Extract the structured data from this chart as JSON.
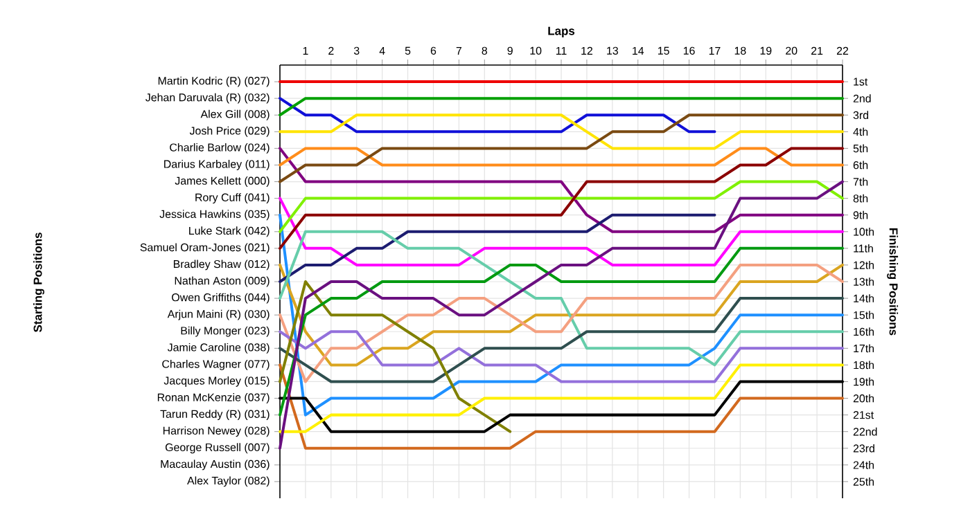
{
  "chart_data": {
    "type": "line",
    "xlabel": "Laps",
    "y2label": "Finishing Positions",
    "x": [
      0,
      1,
      2,
      3,
      4,
      5,
      6,
      7,
      8,
      9,
      10,
      11,
      12,
      13,
      14,
      15,
      16,
      17,
      18,
      19,
      20,
      21,
      22
    ],
    "xlim": [
      0,
      22
    ],
    "xticks": [
      1,
      2,
      3,
      4,
      5,
      6,
      7,
      8,
      9,
      10,
      11,
      12,
      13,
      14,
      15,
      16,
      17,
      18,
      19,
      20,
      21,
      22
    ],
    "y2lim": [
      26,
      0
    ],
    "y2ticks": [
      {
        "value": 1,
        "label": "1st"
      },
      {
        "value": 2,
        "label": "2nd"
      },
      {
        "value": 3,
        "label": "3rd"
      },
      {
        "value": 4,
        "label": "4th"
      },
      {
        "value": 5,
        "label": "5th"
      },
      {
        "value": 6,
        "label": "6th"
      },
      {
        "value": 7,
        "label": "7th"
      },
      {
        "value": 8,
        "label": "8th"
      },
      {
        "value": 9,
        "label": "9th"
      },
      {
        "value": 10,
        "label": "10th"
      },
      {
        "value": 11,
        "label": "11th"
      },
      {
        "value": 12,
        "label": "12th"
      },
      {
        "value": 13,
        "label": "13th"
      },
      {
        "value": 14,
        "label": "14th"
      },
      {
        "value": 15,
        "label": "15th"
      },
      {
        "value": 16,
        "label": "16th"
      },
      {
        "value": 17,
        "label": "17th"
      },
      {
        "value": 18,
        "label": "18th"
      },
      {
        "value": 19,
        "label": "19th"
      },
      {
        "value": 20,
        "label": "20th"
      },
      {
        "value": 21,
        "label": "21st"
      },
      {
        "value": 22,
        "label": "22nd"
      },
      {
        "value": 23,
        "label": "23rd"
      },
      {
        "value": 24,
        "label": "24th"
      },
      {
        "value": 25,
        "label": "25th"
      }
    ],
    "grid": true,
    "annotations": [
      "Starting Positions",
      "Martin Kodric (R) (027)",
      "Jehan Daruvala (R) (032)",
      "Alex Gill (008)",
      "Josh Price (029)",
      "Charlie Barlow (024)",
      "Darius Karbaley (011)",
      "James Kellett (000)",
      "Rory Cuff (041)",
      "Jessica Hawkins (035)",
      "Luke Stark (042)",
      "Samuel Oram-Jones (021)",
      "Bradley Shaw (012)",
      "Nathan Aston (009)",
      "Owen Griffiths (044)",
      "Arjun Maini (R) (030)",
      "Billy Monger (023)",
      "Jamie Caroline (038)",
      "Charles Wagner (077)",
      "Jacques Morley (015)",
      "Ronan McKenzie (037)",
      "Tarun Reddy (R) (031)",
      "Harrison Newey (028)",
      "George Russell (007)",
      "Macaulay Austin (036)",
      "Alex Taylor (082)"
    ],
    "series": [
      {
        "axis": "y2",
        "color": "#ee0000",
        "values": [
          1,
          1,
          1,
          1,
          1,
          1,
          1,
          1,
          1,
          1,
          1,
          1,
          1,
          1,
          1,
          1,
          1,
          1,
          1,
          1,
          1,
          1,
          1
        ]
      },
      {
        "axis": "y2",
        "color": "#1010d8",
        "values": [
          2,
          3,
          3,
          4,
          4,
          4,
          4,
          4,
          4,
          4,
          4,
          4,
          3,
          3,
          3,
          3,
          4,
          4,
          null,
          null,
          null,
          null,
          null
        ]
      },
      {
        "axis": "y2",
        "color": "#00a000",
        "values": [
          3,
          2,
          2,
          2,
          2,
          2,
          2,
          2,
          2,
          2,
          2,
          2,
          2,
          2,
          2,
          2,
          2,
          2,
          2,
          2,
          2,
          2,
          2
        ]
      },
      {
        "axis": "y2",
        "color": "#ffe400",
        "values": [
          4,
          4,
          4,
          3,
          3,
          3,
          3,
          3,
          3,
          3,
          3,
          3,
          4,
          5,
          5,
          5,
          5,
          5,
          4,
          4,
          4,
          4,
          4
        ]
      },
      {
        "axis": "y2",
        "color": "#800080",
        "values": [
          5,
          7,
          7,
          7,
          7,
          7,
          7,
          7,
          7,
          7,
          7,
          7,
          9,
          10,
          10,
          10,
          10,
          10,
          9,
          9,
          9,
          9,
          9
        ]
      },
      {
        "axis": "y2",
        "color": "#ff8c1a",
        "values": [
          6,
          5,
          5,
          5,
          6,
          6,
          6,
          6,
          6,
          6,
          6,
          6,
          6,
          6,
          6,
          6,
          6,
          6,
          5,
          5,
          6,
          6,
          6
        ]
      },
      {
        "axis": "y2",
        "color": "#7a4a12",
        "values": [
          7,
          6,
          6,
          6,
          5,
          5,
          5,
          5,
          5,
          5,
          5,
          5,
          5,
          4,
          4,
          4,
          3,
          3,
          3,
          3,
          3,
          3,
          3
        ]
      },
      {
        "axis": "y2",
        "color": "#ff00ff",
        "values": [
          8,
          11,
          11,
          12,
          12,
          12,
          12,
          12,
          11,
          11,
          11,
          11,
          11,
          12,
          12,
          12,
          12,
          12,
          10,
          10,
          10,
          10,
          10
        ]
      },
      {
        "axis": "y2",
        "color": "#1e90ff",
        "values": [
          9,
          21,
          20,
          20,
          20,
          20,
          20,
          19,
          19,
          19,
          19,
          18,
          18,
          18,
          18,
          18,
          18,
          17,
          15,
          15,
          15,
          15,
          15
        ]
      },
      {
        "axis": "y2",
        "color": "#80f000",
        "values": [
          10,
          8,
          8,
          8,
          8,
          8,
          8,
          8,
          8,
          8,
          8,
          8,
          8,
          8,
          8,
          8,
          8,
          8,
          7,
          7,
          7,
          7,
          8
        ]
      },
      {
        "axis": "y2",
        "color": "#8b0000",
        "values": [
          11,
          9,
          9,
          9,
          9,
          9,
          9,
          9,
          9,
          9,
          9,
          9,
          7,
          7,
          7,
          7,
          7,
          7,
          6,
          6,
          5,
          5,
          5
        ]
      },
      {
        "axis": "y2",
        "color": "#daa520",
        "values": [
          12,
          16,
          18,
          18,
          17,
          17,
          16,
          16,
          16,
          16,
          15,
          15,
          15,
          15,
          15,
          15,
          15,
          15,
          13,
          13,
          13,
          13,
          12
        ]
      },
      {
        "axis": "y2",
        "color": "#1c1c70",
        "values": [
          13,
          12,
          12,
          11,
          11,
          10,
          10,
          10,
          10,
          10,
          10,
          10,
          10,
          9,
          9,
          9,
          9,
          9,
          null,
          null,
          null,
          null,
          null
        ]
      },
      {
        "axis": "y2",
        "color": "#66cdaa",
        "values": [
          14,
          10,
          10,
          10,
          10,
          11,
          11,
          11,
          12,
          13,
          14,
          14,
          17,
          17,
          17,
          17,
          17,
          18,
          16,
          16,
          16,
          16,
          16
        ]
      },
      {
        "axis": "y2",
        "color": "#f4a080",
        "values": [
          15,
          19,
          17,
          17,
          16,
          15,
          15,
          14,
          14,
          15,
          16,
          16,
          14,
          14,
          14,
          14,
          14,
          14,
          12,
          12,
          12,
          12,
          13
        ]
      },
      {
        "axis": "y2",
        "color": "#9370db",
        "values": [
          16,
          17,
          16,
          16,
          18,
          18,
          18,
          17,
          18,
          18,
          18,
          19,
          19,
          19,
          19,
          19,
          19,
          19,
          17,
          17,
          17,
          17,
          17
        ]
      },
      {
        "axis": "y2",
        "color": "#2f4f4f",
        "values": [
          17,
          18,
          19,
          19,
          19,
          19,
          19,
          18,
          17,
          17,
          17,
          17,
          16,
          16,
          16,
          16,
          16,
          16,
          14,
          14,
          14,
          14,
          14
        ]
      },
      {
        "axis": "y2",
        "color": "#d2691e",
        "values": [
          18,
          23,
          23,
          23,
          23,
          23,
          23,
          23,
          23,
          23,
          22,
          22,
          22,
          22,
          22,
          22,
          22,
          22,
          20,
          20,
          20,
          20,
          20
        ]
      },
      {
        "axis": "y2",
        "color": "#808000",
        "values": [
          19,
          13,
          15,
          15,
          15,
          16,
          17,
          20,
          21,
          22,
          null,
          null,
          null,
          null,
          null,
          null,
          null,
          null,
          null,
          null,
          null,
          null,
          null
        ]
      },
      {
        "axis": "y2",
        "color": "#000000",
        "values": [
          20,
          20,
          22,
          22,
          22,
          22,
          22,
          22,
          22,
          21,
          21,
          21,
          21,
          21,
          21,
          21,
          21,
          21,
          19,
          19,
          19,
          19,
          19
        ]
      },
      {
        "axis": "y2",
        "color": "#009a10",
        "values": [
          21,
          15,
          14,
          14,
          13,
          13,
          13,
          13,
          13,
          12,
          12,
          13,
          13,
          13,
          13,
          13,
          13,
          13,
          11,
          11,
          11,
          11,
          11
        ]
      },
      {
        "axis": "y2",
        "color": "#fff000",
        "values": [
          22,
          22,
          21,
          21,
          21,
          21,
          21,
          21,
          20,
          20,
          20,
          20,
          20,
          20,
          20,
          20,
          20,
          20,
          18,
          18,
          18,
          18,
          18
        ]
      },
      {
        "axis": "y2",
        "color": "#6a1080",
        "values": [
          23,
          14,
          13,
          13,
          14,
          14,
          14,
          15,
          15,
          14,
          13,
          12,
          12,
          11,
          11,
          11,
          11,
          11,
          8,
          8,
          8,
          8,
          7
        ]
      }
    ]
  }
}
